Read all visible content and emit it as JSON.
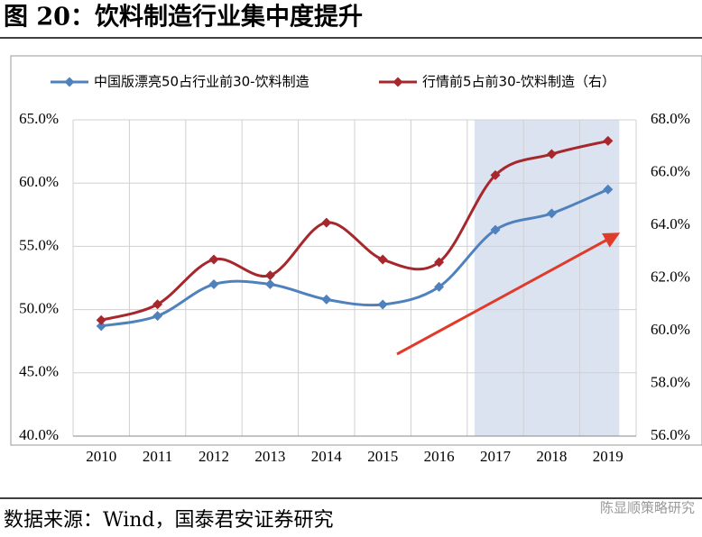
{
  "chart_data": {
    "type": "line",
    "title": "图 20：饮料制造行业集中度提升",
    "source": "数据来源：Wind，国泰君安证券研究",
    "watermark": "陈显顺策略研究",
    "categories": [
      "2010",
      "2011",
      "2012",
      "2013",
      "2014",
      "2015",
      "2016",
      "2017",
      "2018",
      "2019"
    ],
    "series": [
      {
        "name": "中国版漂亮50占行业前30-饮料制造",
        "color": "#4f81bd",
        "values": [
          48.7,
          49.5,
          52.0,
          52.0,
          50.8,
          50.4,
          51.8,
          56.3,
          57.6,
          59.5
        ]
      },
      {
        "name": "行情前5占前30-饮料制造（右）",
        "color": "#a6282c",
        "axis": "y2",
        "values": [
          60.4,
          61.0,
          62.7,
          62.1,
          64.1,
          62.7,
          62.6,
          65.9,
          66.7,
          67.2
        ]
      }
    ],
    "ylim": [
      40,
      65
    ],
    "yticks": [
      {
        "value": 40,
        "label": "40.0%"
      },
      {
        "value": 45,
        "label": "45.0%"
      },
      {
        "value": 50,
        "label": "50.0%"
      },
      {
        "value": 55,
        "label": "55.0%"
      },
      {
        "value": 60,
        "label": "60.0%"
      },
      {
        "value": 65,
        "label": "65.0%"
      }
    ],
    "y2lim": [
      56,
      68
    ],
    "y2ticks": [
      {
        "value": 56,
        "label": "56.0%"
      },
      {
        "value": 58,
        "label": "58.0%"
      },
      {
        "value": 60,
        "label": "60.0%"
      },
      {
        "value": 62,
        "label": "62.0%"
      },
      {
        "value": 64,
        "label": "64.0%"
      },
      {
        "value": 66,
        "label": "66.0%"
      },
      {
        "value": 68,
        "label": "68.0%"
      }
    ],
    "grid": true
  }
}
